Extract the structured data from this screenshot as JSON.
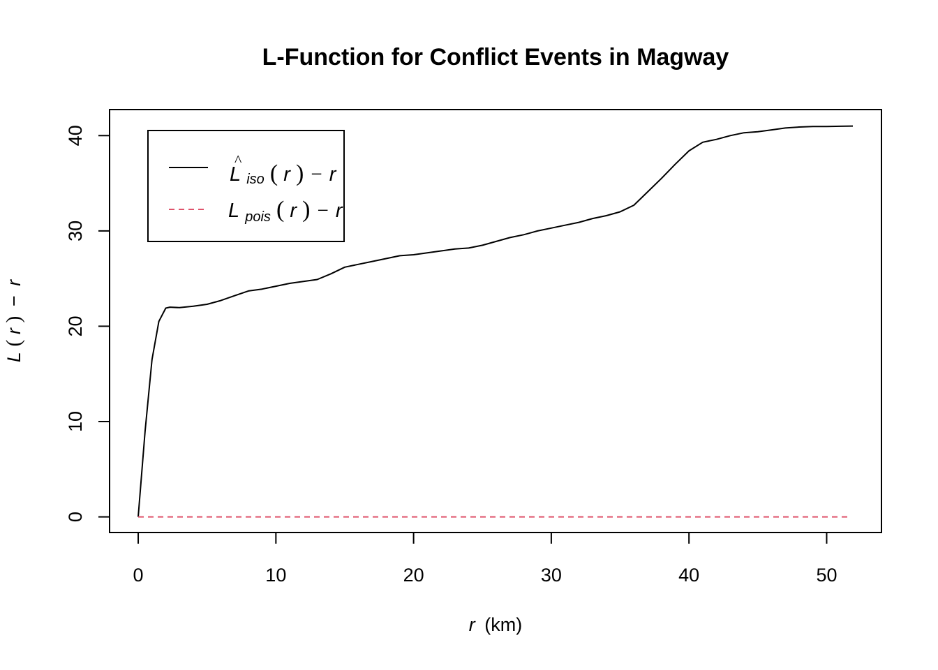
{
  "chart_data": {
    "type": "line",
    "title": "L-Function for Conflict Events in Magway",
    "xlabel": {
      "var": "r",
      "unit": "(km)"
    },
    "ylabel": {
      "func": "L",
      "arg": "r",
      "minus": "−",
      "var": "r"
    },
    "xlim": [
      -2.08,
      53.98
    ],
    "ylim": [
      -1.64,
      42.73
    ],
    "x_ticks": [
      0,
      10,
      20,
      30,
      40,
      50
    ],
    "y_ticks": [
      0,
      10,
      20,
      30,
      40
    ],
    "grid": false,
    "legend_position": "top-left",
    "series": [
      {
        "name": "iso",
        "legend": {
          "main": "L",
          "hat": "^",
          "sub": "iso",
          "open": "(",
          "arg": "r",
          "close": ")",
          "minus": "−",
          "var": "r"
        },
        "color": "#000000",
        "dash": "solid",
        "x": [
          0,
          0.5,
          1.0,
          1.5,
          2.0,
          2.3,
          3,
          4,
          5,
          6,
          7,
          8,
          9,
          10,
          11,
          12,
          13,
          14,
          15,
          16,
          17,
          18,
          19,
          20,
          21,
          22,
          23,
          24,
          25,
          26,
          27,
          28,
          29,
          30,
          31,
          32,
          33,
          34,
          35,
          36,
          37,
          38,
          39,
          40,
          41,
          42,
          43,
          44,
          45,
          46,
          47,
          48,
          49,
          50,
          51,
          51.9
        ],
        "y": [
          0,
          9.0,
          16.5,
          20.5,
          21.9,
          22.0,
          21.95,
          22.1,
          22.3,
          22.7,
          23.2,
          23.7,
          23.9,
          24.2,
          24.5,
          24.7,
          24.9,
          25.5,
          26.2,
          26.5,
          26.8,
          27.1,
          27.4,
          27.5,
          27.7,
          27.9,
          28.1,
          28.2,
          28.5,
          28.9,
          29.3,
          29.6,
          30.0,
          30.3,
          30.6,
          30.9,
          31.3,
          31.6,
          32.0,
          32.7,
          34.1,
          35.5,
          37.0,
          38.4,
          39.3,
          39.6,
          40.0,
          40.3,
          40.4,
          40.6,
          40.8,
          40.9,
          40.95,
          40.95,
          40.98,
          41.0
        ]
      },
      {
        "name": "pois",
        "legend": {
          "main": "L",
          "sub": "pois",
          "open": "(",
          "arg": "r",
          "close": ")",
          "minus": "−",
          "var": "r"
        },
        "color": "#df536b",
        "dash": "dashed",
        "x": [
          0,
          51.6
        ],
        "y": [
          0,
          0
        ]
      }
    ]
  }
}
